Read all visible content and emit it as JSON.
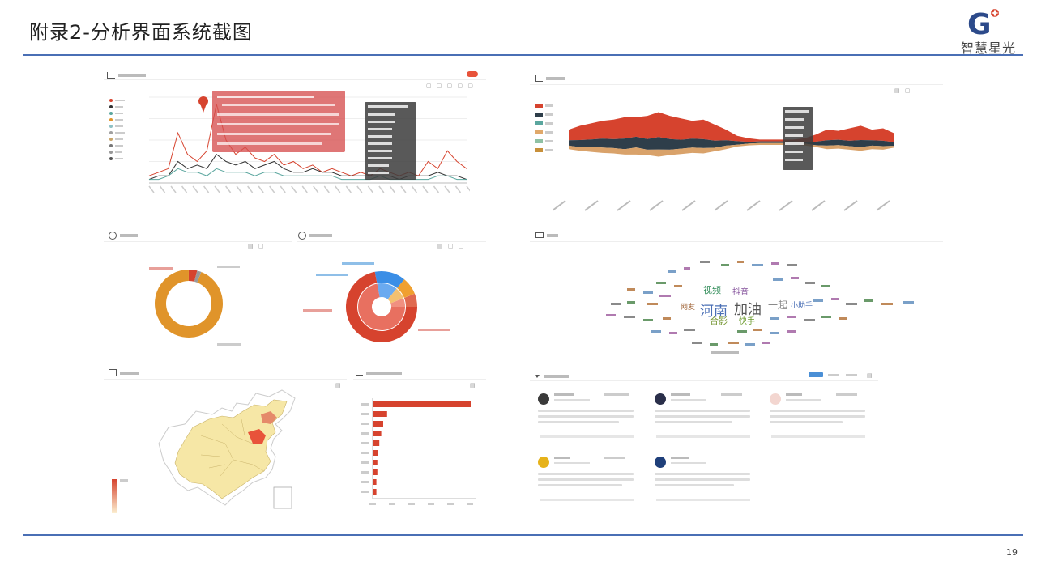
{
  "slide": {
    "title": "附录2-分析界面系统截图",
    "page_number": "19",
    "logo_text": "智慧星光",
    "logo_letter": "G"
  },
  "colors": {
    "red": "#d6432e",
    "orange": "#e0942a",
    "dark": "#2e3e4a",
    "teal": "#5aa69e",
    "blue": "#3a8ee6",
    "blue_line": "#4a6fb5",
    "map_fill": "#f6e7a6"
  },
  "icons": {
    "trend": "line-chart-icon",
    "pie": "pie-chart-icon",
    "map": "map-icon",
    "bar": "bar-chart-icon",
    "cloud": "word-cloud-icon",
    "list": "list-icon"
  },
  "chart_data": [
    {
      "type": "line",
      "series": [
        {
          "values": [
            2,
            3,
            4,
            14,
            8,
            6,
            9,
            22,
            12,
            8,
            10,
            7,
            6,
            8,
            5,
            6,
            4,
            5,
            3,
            4,
            3,
            2,
            3,
            2,
            4,
            3,
            2,
            3,
            2,
            6,
            4,
            9,
            6,
            4
          ]
        },
        {
          "values": [
            1,
            2,
            2,
            6,
            4,
            5,
            4,
            8,
            6,
            5,
            6,
            4,
            5,
            6,
            4,
            3,
            3,
            4,
            3,
            3,
            2,
            2,
            2,
            2,
            2,
            2,
            1,
            2,
            2,
            2,
            3,
            2,
            2,
            1
          ]
        },
        {
          "values": [
            1,
            1,
            2,
            4,
            3,
            3,
            2,
            4,
            3,
            3,
            3,
            2,
            3,
            3,
            2,
            2,
            2,
            2,
            2,
            2,
            1,
            1,
            1,
            1,
            2,
            1,
            1,
            1,
            1,
            1,
            2,
            2,
            1,
            1
          ]
        }
      ]
    },
    {
      "type": "area",
      "series": [
        {
          "values": [
            6,
            8,
            9,
            10,
            11,
            12,
            11,
            13,
            14,
            13,
            12,
            10,
            11,
            9,
            6,
            3,
            2,
            1,
            1,
            1,
            1,
            2,
            4,
            6,
            5,
            7,
            8,
            6,
            7,
            5
          ]
        },
        {
          "values": [
            3,
            4,
            4,
            5,
            5,
            6,
            6,
            6,
            7,
            6,
            5,
            5,
            5,
            4,
            3,
            2,
            1,
            1,
            1,
            1,
            1,
            1,
            2,
            3,
            3,
            3,
            4,
            3,
            3,
            2
          ]
        },
        {
          "values": [
            2,
            2,
            3,
            3,
            3,
            3,
            4,
            3,
            4,
            3,
            3,
            3,
            3,
            2,
            2,
            1,
            1,
            1,
            1,
            1,
            1,
            1,
            1,
            2,
            2,
            2,
            2,
            2,
            2,
            1
          ]
        }
      ]
    },
    {
      "type": "pie",
      "values": [
        94,
        4,
        2
      ]
    },
    {
      "type": "pie",
      "values": [
        72,
        14,
        8,
        6
      ]
    },
    {
      "type": "bar",
      "values": [
        100,
        14,
        10,
        8,
        6,
        5,
        4,
        4,
        3,
        3
      ]
    }
  ],
  "word_cloud": {
    "words": [
      {
        "t": "河南",
        "c": "#4a6fb5",
        "s": 17
      },
      {
        "t": "加油",
        "c": "#555555",
        "s": 17
      },
      {
        "t": "一起",
        "c": "#888888",
        "s": 12
      },
      {
        "t": "视频",
        "c": "#2e8b57",
        "s": 11
      },
      {
        "t": "合影",
        "c": "#7a9a3a",
        "s": 11
      },
      {
        "t": "抖音",
        "c": "#8a5aa0",
        "s": 10
      },
      {
        "t": "快手",
        "c": "#6a9a2a",
        "s": 10
      },
      {
        "t": "小助手",
        "c": "#4a6fb5",
        "s": 9
      },
      {
        "t": "网友",
        "c": "#9a5a2a",
        "s": 9
      }
    ]
  }
}
